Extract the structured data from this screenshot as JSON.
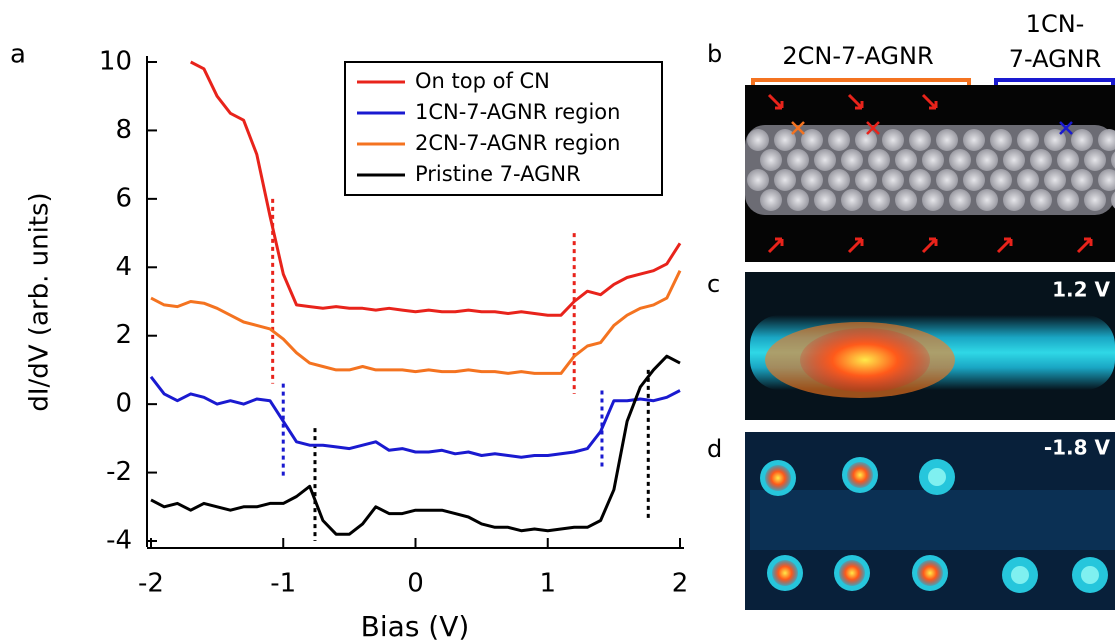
{
  "chart_data": {
    "type": "line",
    "panel_label": "a",
    "xlabel": "Bias (V)",
    "ylabel": "dI/dV (arb. units)",
    "xlim": [
      -2,
      2
    ],
    "ylim": [
      -4,
      10
    ],
    "xticks": [
      -2,
      -1,
      0,
      1,
      2
    ],
    "yticks": [
      -4,
      -2,
      0,
      2,
      4,
      6,
      8,
      10
    ],
    "legend": "upper right",
    "x": [
      -2,
      -1.9,
      -1.8,
      -1.7,
      -1.6,
      -1.5,
      -1.4,
      -1.3,
      -1.2,
      -1.1,
      -1,
      -0.9,
      -0.8,
      -0.7,
      -0.6,
      -0.5,
      -0.4,
      -0.3,
      -0.2,
      -0.1,
      0,
      0.1,
      0.2,
      0.3,
      0.4,
      0.5,
      0.6,
      0.7,
      0.8,
      0.9,
      1,
      1.1,
      1.2,
      1.3,
      1.4,
      1.5,
      1.6,
      1.7,
      1.8,
      1.9,
      2
    ],
    "series": [
      {
        "name": "On top of CN",
        "color": "#e8231b",
        "values": [
          null,
          null,
          null,
          10,
          9.8,
          9.0,
          8.5,
          8.3,
          7.3,
          5.5,
          3.8,
          2.9,
          2.85,
          2.8,
          2.85,
          2.8,
          2.8,
          2.75,
          2.8,
          2.75,
          2.7,
          2.75,
          2.7,
          2.7,
          2.75,
          2.7,
          2.7,
          2.65,
          2.7,
          2.65,
          2.6,
          2.6,
          3.0,
          3.3,
          3.2,
          3.5,
          3.7,
          3.8,
          3.9,
          4.1,
          4.7
        ]
      },
      {
        "name": "1CN-7-AGNR region",
        "color": "#1a1ad0",
        "values": [
          0.8,
          0.3,
          0.1,
          0.3,
          0.2,
          0.0,
          0.1,
          0.0,
          0.15,
          0.1,
          -0.5,
          -1.1,
          -1.2,
          -1.2,
          -1.25,
          -1.3,
          -1.2,
          -1.1,
          -1.35,
          -1.3,
          -1.4,
          -1.4,
          -1.35,
          -1.45,
          -1.4,
          -1.5,
          -1.45,
          -1.5,
          -1.55,
          -1.5,
          -1.5,
          -1.45,
          -1.4,
          -1.3,
          -0.8,
          0.1,
          0.1,
          0.15,
          0.1,
          0.2,
          0.4
        ]
      },
      {
        "name": "2CN-7-AGNR region",
        "color": "#f47320",
        "values": [
          3.1,
          2.9,
          2.85,
          3.0,
          2.95,
          2.8,
          2.6,
          2.4,
          2.3,
          2.2,
          1.9,
          1.5,
          1.2,
          1.1,
          1.0,
          1.0,
          1.1,
          1.0,
          1.0,
          1.0,
          0.95,
          1.0,
          0.95,
          0.95,
          1.0,
          0.95,
          0.95,
          0.9,
          0.95,
          0.9,
          0.9,
          0.9,
          1.4,
          1.7,
          1.8,
          2.3,
          2.6,
          2.8,
          2.9,
          3.1,
          3.9
        ]
      },
      {
        "name": "Pristine 7-AGNR",
        "color": "#000000",
        "values": [
          -2.8,
          -3.0,
          -2.9,
          -3.1,
          -2.9,
          -3.0,
          -3.1,
          -3.0,
          -3.0,
          -2.9,
          -2.9,
          -2.7,
          -2.4,
          -3.4,
          -3.8,
          -3.8,
          -3.5,
          -3.0,
          -3.2,
          -3.2,
          -3.1,
          -3.1,
          -3.1,
          -3.2,
          -3.3,
          -3.5,
          -3.6,
          -3.6,
          -3.7,
          -3.65,
          -3.7,
          -3.65,
          -3.6,
          -3.6,
          -3.4,
          -2.5,
          -0.5,
          0.5,
          1.0,
          1.4,
          1.2
        ]
      }
    ],
    "markers": [
      {
        "x": -1.08,
        "y": [
          6.0,
          0.6
        ],
        "color": "#e8231b"
      },
      {
        "x": 1.2,
        "y": [
          5.0,
          0.3
        ],
        "color": "#e8231b"
      },
      {
        "x": -1.0,
        "y": [
          0.6,
          -2.1
        ],
        "color": "#1a1ad0"
      },
      {
        "x": 1.41,
        "y": [
          0.4,
          -1.9
        ],
        "color": "#1a1ad0"
      },
      {
        "x": -0.76,
        "y": [
          -0.7,
          -4.0
        ],
        "color": "#000000"
      },
      {
        "x": 1.76,
        "y": [
          1.0,
          -3.4
        ],
        "color": "#000000"
      }
    ]
  },
  "panels": {
    "b": {
      "label": "b",
      "region_left": "2CN-7-AGNR",
      "region_right_1": "1CN-",
      "region_right_2": "7-AGNR"
    },
    "c": {
      "label": "c",
      "bias": "1.2 V"
    },
    "d": {
      "label": "d",
      "bias": "-1.8 V"
    }
  }
}
